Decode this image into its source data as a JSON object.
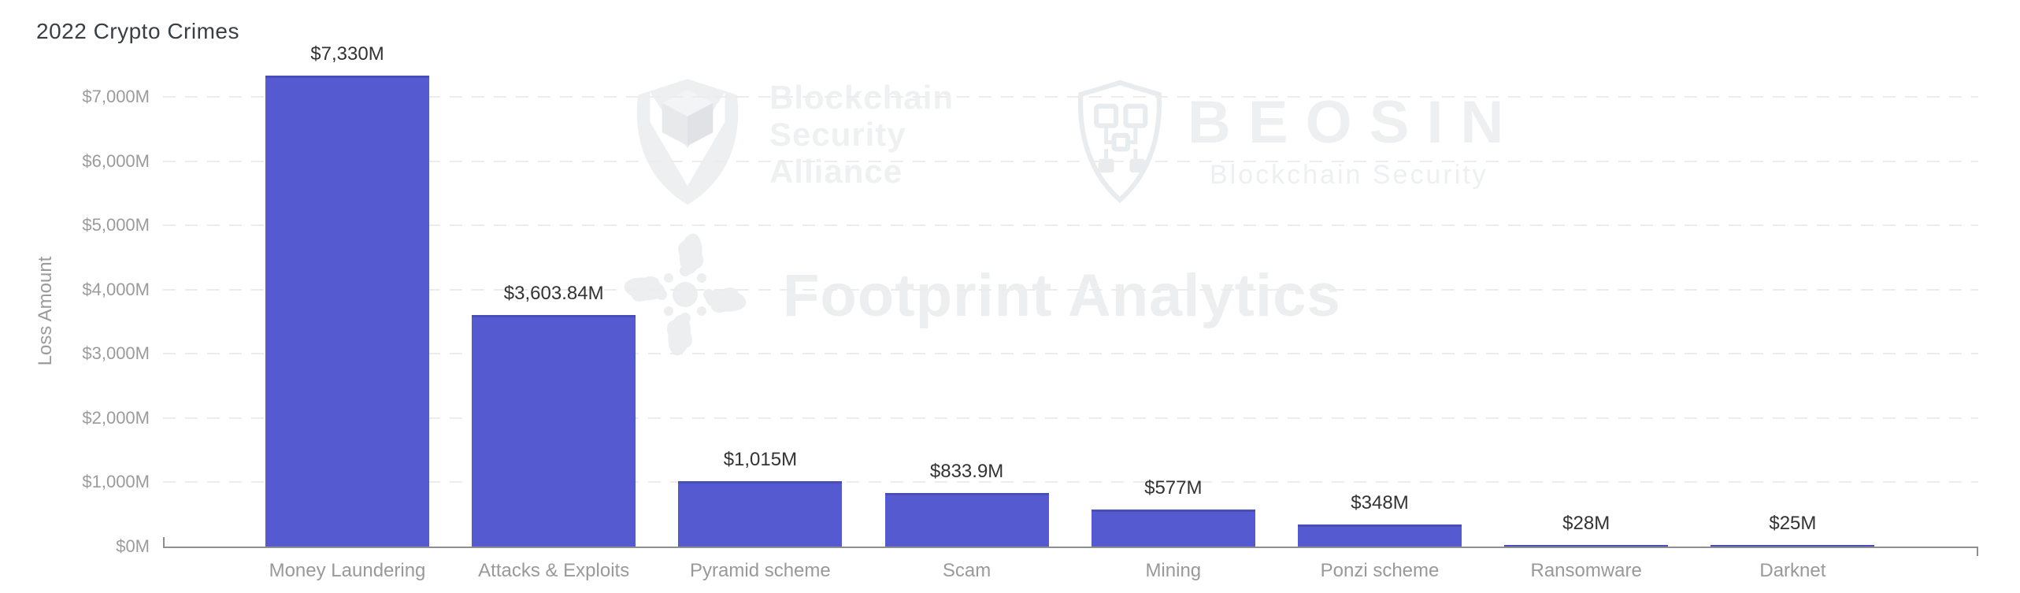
{
  "page": {
    "title": "2022 Crypto Crimes"
  },
  "chart_data": {
    "type": "bar",
    "title": "2022 Crypto Crimes",
    "xlabel": "",
    "ylabel": "Loss Amount",
    "categories": [
      "Money Laundering",
      "Attacks & Exploits",
      "Pyramid scheme",
      "Scam",
      "Mining",
      "Ponzi scheme",
      "Ransomware",
      "Darknet"
    ],
    "values": [
      7330,
      3603.84,
      1015,
      833.9,
      577,
      348,
      28,
      25
    ],
    "value_labels": [
      "$7,330M",
      "$3,603.84M",
      "$1,015M",
      "$833.9M",
      "$577M",
      "$348M",
      "$28M",
      "$25M"
    ],
    "tick_values": [
      0,
      1000,
      2000,
      3000,
      4000,
      5000,
      6000,
      7000
    ],
    "tick_labels": [
      "$0M",
      "$1,000M",
      "$2,000M",
      "$3,000M",
      "$4,000M",
      "$5,000M",
      "$6,000M",
      "$7,000M"
    ],
    "ylim": [
      0,
      7330
    ],
    "grid": "horizontal-dashed",
    "legend": "none",
    "bar_color": "#555ad0"
  },
  "watermarks": {
    "alliance": {
      "lines": [
        "Blockchain",
        "Security",
        "Alliance"
      ]
    },
    "beosin": {
      "name": "BEOSIN",
      "subtitle": "Blockchain Security"
    },
    "footprint": {
      "text": "Footprint Analytics"
    }
  },
  "colors": {
    "bar": "#555ad0",
    "title_text": "#3a3f45",
    "axis_line": "#8f8f8f",
    "gridline": "#ececec",
    "tick_label": "#9b9b9b",
    "value_label": "#333333",
    "watermark": "#edeff0"
  }
}
